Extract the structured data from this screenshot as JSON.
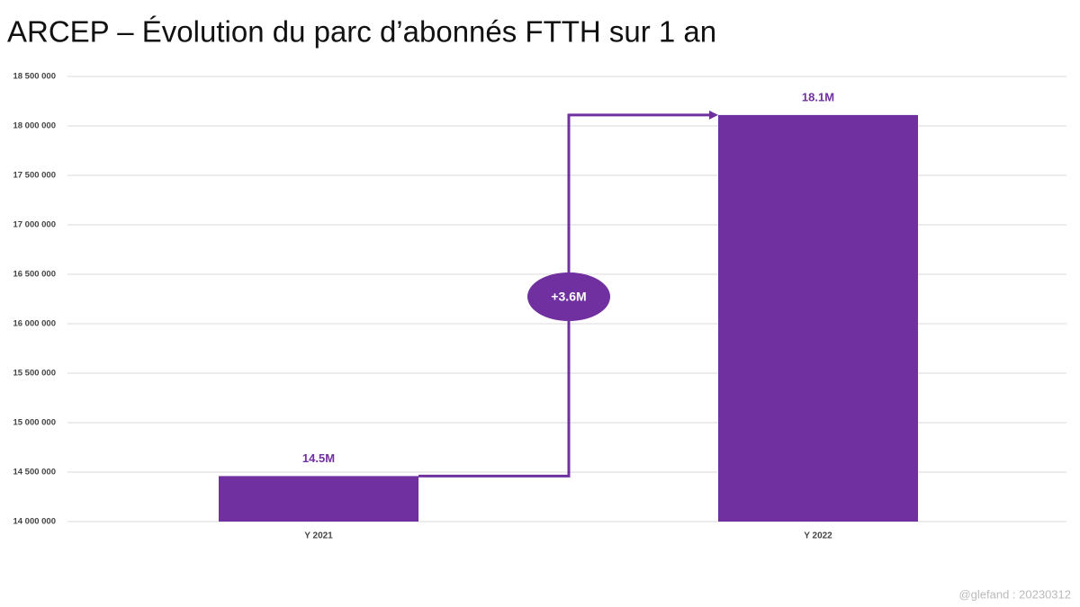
{
  "chart_data": {
    "type": "bar",
    "title": "ARCEP – Évolution du parc d’abonnés FTTH sur 1 an",
    "categories": [
      "Y 2021",
      "Y 2022"
    ],
    "values": [
      14460000,
      18110000
    ],
    "value_labels": [
      "14.5M",
      "18.1M"
    ],
    "color": "#7030a0",
    "ylim": [
      14000000,
      18500000
    ],
    "yticks": [
      {
        "value": 14000000,
        "label": "14 000 000"
      },
      {
        "value": 14500000,
        "label": "14 500 000"
      },
      {
        "value": 15000000,
        "label": "15 000 000"
      },
      {
        "value": 15500000,
        "label": "15 500 000"
      },
      {
        "value": 16000000,
        "label": "16 000 000"
      },
      {
        "value": 16500000,
        "label": "16 500 000"
      },
      {
        "value": 17000000,
        "label": "17 000 000"
      },
      {
        "value": 17500000,
        "label": "17 500 000"
      },
      {
        "value": 18000000,
        "label": "18 000 000"
      },
      {
        "value": 18500000,
        "label": "18 500 000"
      }
    ],
    "grid": true,
    "annotation": "+3.6M",
    "footer": "@glefand : 20230312"
  }
}
